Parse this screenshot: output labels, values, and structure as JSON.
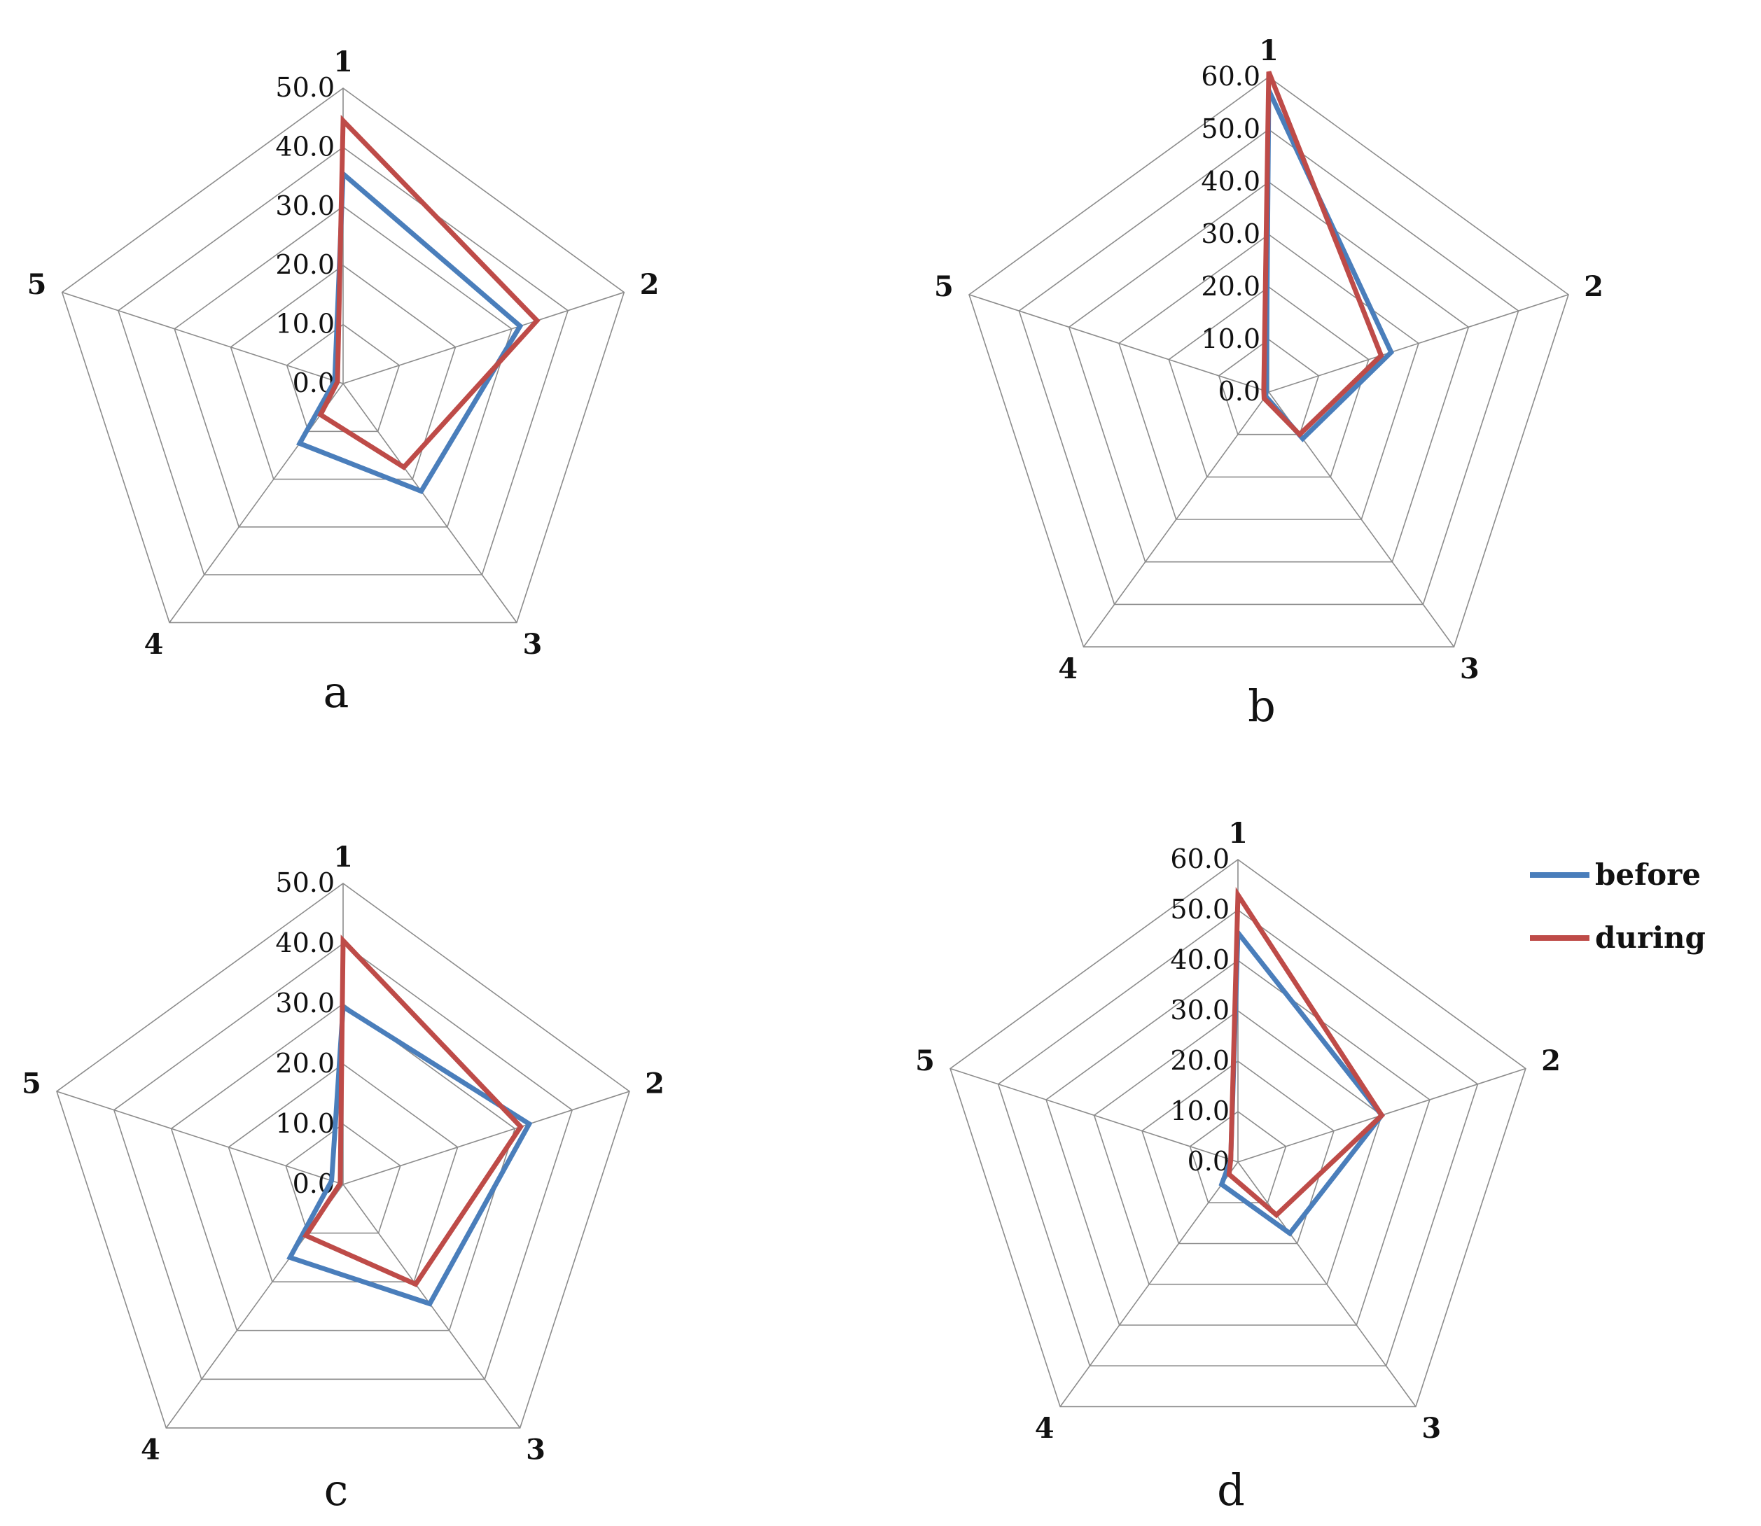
{
  "colors": {
    "before": "#4a7ebb",
    "during": "#be4b48"
  },
  "legend": [
    {
      "key": "before",
      "label": "before"
    },
    {
      "key": "during",
      "label": "during"
    }
  ],
  "chart_data": [
    {
      "type": "radar",
      "panel_label": "a",
      "categories": [
        "1",
        "2",
        "3",
        "4",
        "5"
      ],
      "ticks": [
        "0.0",
        "10.0",
        "20.0",
        "30.0",
        "40.0",
        "50.0"
      ],
      "range": [
        0,
        50
      ],
      "series": [
        {
          "name": "before",
          "values": [
            35.5,
            31.5,
            22.5,
            12.5,
            1.5
          ]
        },
        {
          "name": "during",
          "values": [
            44.5,
            34.5,
            17.5,
            6.5,
            1.0
          ]
        }
      ]
    },
    {
      "type": "radar",
      "panel_label": "b",
      "categories": [
        "1",
        "2",
        "3",
        "4",
        "5"
      ],
      "ticks": [
        "0.0",
        "10.0",
        "20.0",
        "30.0",
        "40.0",
        "50.0",
        "60.0"
      ],
      "range": [
        0,
        60
      ],
      "series": [
        {
          "name": "before",
          "values": [
            57.5,
            24.5,
            11.0,
            1.0,
            0.5
          ]
        },
        {
          "name": "during",
          "values": [
            61.0,
            22.5,
            10.0,
            1.5,
            1.0
          ]
        }
      ]
    },
    {
      "type": "radar",
      "panel_label": "c",
      "categories": [
        "1",
        "2",
        "3",
        "4",
        "5"
      ],
      "ticks": [
        "0.0",
        "10.0",
        "20.0",
        "30.0",
        "40.0",
        "50.0"
      ],
      "range": [
        0,
        50
      ],
      "series": [
        {
          "name": "before",
          "values": [
            29.5,
            32.5,
            24.5,
            15.0,
            2.0
          ]
        },
        {
          "name": "during",
          "values": [
            40.5,
            31.0,
            20.5,
            10.5,
            0.5
          ]
        }
      ]
    },
    {
      "type": "radar",
      "panel_label": "d",
      "categories": [
        "1",
        "2",
        "3",
        "4",
        "5"
      ],
      "ticks": [
        "0.0",
        "10.0",
        "20.0",
        "30.0",
        "40.0",
        "50.0",
        "60.0"
      ],
      "range": [
        0,
        60
      ],
      "series": [
        {
          "name": "before",
          "values": [
            45.5,
            30.0,
            17.5,
            5.5,
            1.5
          ]
        },
        {
          "name": "during",
          "values": [
            53.0,
            30.0,
            13.0,
            3.0,
            1.5
          ]
        }
      ]
    }
  ]
}
